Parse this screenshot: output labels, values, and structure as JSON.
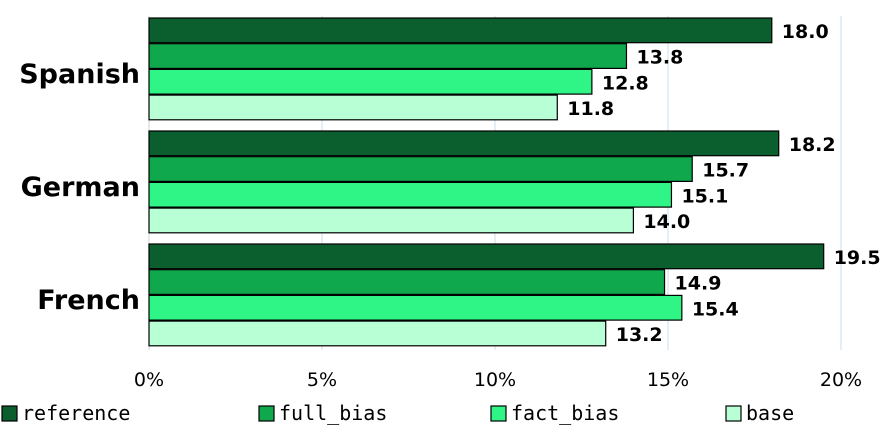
{
  "chart_data": {
    "type": "bar",
    "orientation": "horizontal",
    "categories": [
      "Spanish",
      "German",
      "French"
    ],
    "series": [
      {
        "name": "reference",
        "color": "#0b5e2d",
        "values": [
          18.0,
          18.2,
          19.5
        ]
      },
      {
        "name": "full_bias",
        "color": "#10a84c",
        "values": [
          13.8,
          15.7,
          14.9
        ]
      },
      {
        "name": "fact_bias",
        "color": "#2ef585",
        "values": [
          12.8,
          15.1,
          15.4
        ]
      },
      {
        "name": "base",
        "color": "#b8ffd6",
        "values": [
          11.8,
          14.0,
          13.2
        ]
      }
    ],
    "value_labels": [
      [
        "18.0",
        "13.8",
        "12.8",
        "11.8"
      ],
      [
        "18.2",
        "15.7",
        "15.1",
        "14.0"
      ],
      [
        "19.5",
        "14.9",
        "15.4",
        "13.2"
      ]
    ],
    "x_ticks": [
      0,
      5,
      10,
      15,
      20
    ],
    "x_tick_labels": [
      "0%",
      "5%",
      "10%",
      "15%",
      "20%"
    ],
    "xlim": [
      0,
      20
    ],
    "grid": "vertical",
    "legend_position": "bottom",
    "title": "",
    "xlabel": "",
    "ylabel": ""
  }
}
